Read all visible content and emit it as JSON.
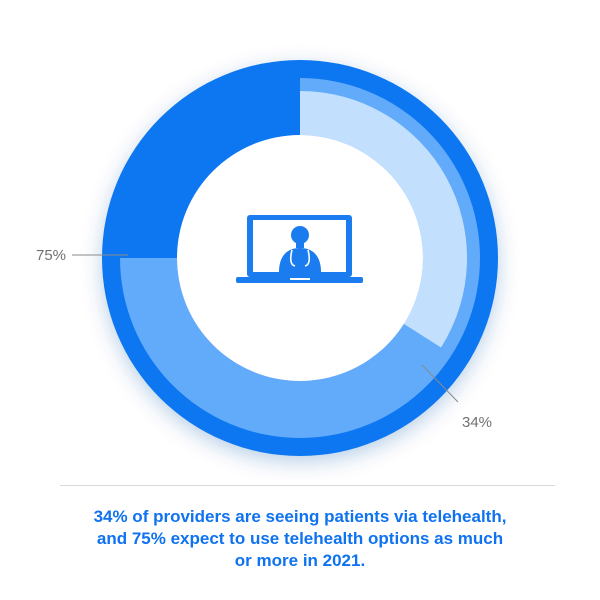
{
  "chart_data": {
    "type": "donut",
    "rings": [
      {
        "label": "75%",
        "value": 75,
        "color": "#62abfb"
      },
      {
        "label": "34%",
        "value": 34,
        "color": "#c2e0fd"
      }
    ],
    "track_color": "#0e77f1",
    "icon": "laptop-doctor-icon",
    "icon_color": "#1b7cf0"
  },
  "caption": {
    "lines": [
      "34% of providers are seeing patients via telehealth,",
      "and 75% expect to use telehealth options as much",
      "or more in 2021."
    ]
  }
}
